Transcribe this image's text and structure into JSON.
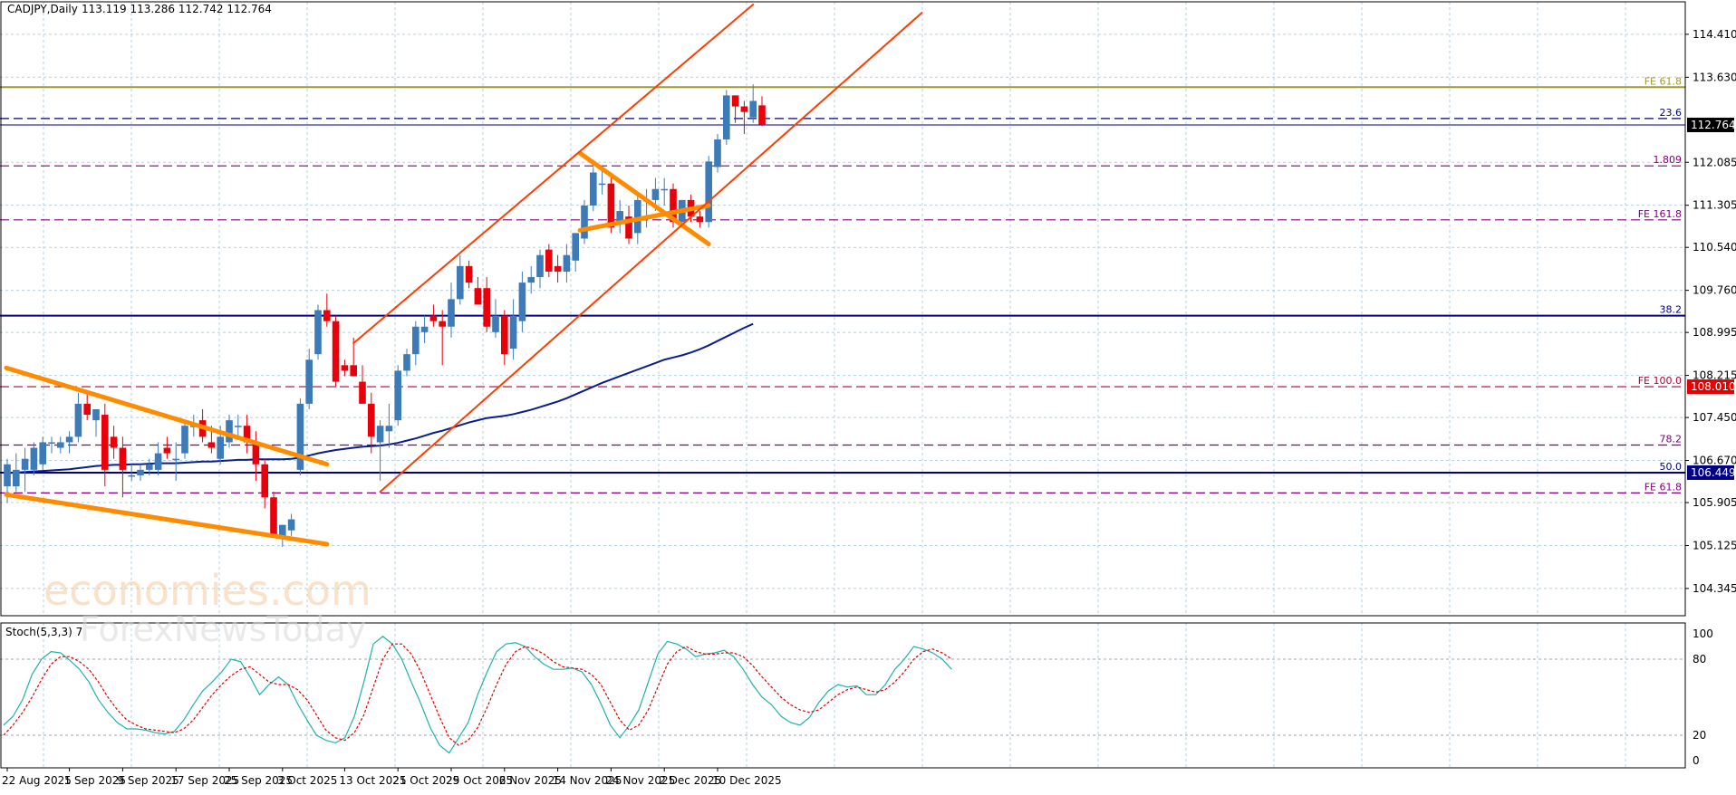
{
  "header": {
    "symbol": "CADJPY,Daily",
    "ohlc": "113.119 113.286 112.742 112.764"
  },
  "indicator": {
    "label": "Stoch(5,3,3) 7",
    "levels": [
      "100",
      "80",
      "20",
      "0"
    ]
  },
  "watermark": {
    "line1": "economies.com",
    "line2": "ForexNewsToday"
  },
  "chart_data": {
    "type": "candlestick",
    "price_ticks": [
      "114.410",
      "113.630",
      "112.085",
      "111.305",
      "110.540",
      "109.760",
      "108.995",
      "108.215",
      "107.450",
      "106.670",
      "105.905",
      "105.125",
      "104.345"
    ],
    "price_tick_values": [
      114.41,
      113.63,
      112.085,
      111.305,
      110.54,
      109.76,
      108.995,
      108.215,
      107.45,
      106.67,
      105.905,
      105.125,
      104.345
    ],
    "ylim": [
      103.85,
      115.0
    ],
    "date_ticks": [
      "22 Aug 2025",
      "1 Sep 2025",
      "9 Sep 2025",
      "17 Sep 2025",
      "25 Sep 2025",
      "3 Oct 2025",
      "13 Oct 2025",
      "21 Oct 2025",
      "29 Oct 2025",
      "6 Nov 2025",
      "14 Nov 2025",
      "24 Nov 2025",
      "2 Dec 2025",
      "10 Dec 2025"
    ],
    "date_tick_index": [
      0,
      7,
      13,
      19,
      25,
      31,
      38,
      44,
      50,
      56,
      62,
      68,
      74,
      80
    ],
    "current_price": "112.764",
    "current_price_value": 112.764,
    "price_labels": [
      {
        "text": "108.010",
        "value": 108.01,
        "bg": "#e60000"
      },
      {
        "text": "106.449",
        "value": 106.449,
        "bg": "#000080"
      }
    ],
    "levels": [
      {
        "label": "FE 61.8",
        "value": 113.45,
        "color": "#a09a30",
        "style": "solid"
      },
      {
        "label": "23.6",
        "value": 112.88,
        "color": "#000080",
        "style": "dashed"
      },
      {
        "label": "1.809",
        "value": 112.02,
        "color": "#800080",
        "style": "dashed"
      },
      {
        "label": "FE 161.8",
        "value": 111.04,
        "color": "#800080",
        "style": "dashed"
      },
      {
        "label": "38.2",
        "value": 109.3,
        "color": "#000080",
        "style": "solid"
      },
      {
        "label": "FE 100.0",
        "value": 108.01,
        "color": "#b00030",
        "style": "dashed"
      },
      {
        "label": "78.2",
        "value": 106.95,
        "color": "#800080",
        "style": "dashed"
      },
      {
        "label": "50.0",
        "value": 106.449,
        "color": "#000080",
        "style": "solid"
      },
      {
        "label": "FE 61.8",
        "value": 106.08,
        "color": "#800080",
        "style": "dashed"
      }
    ],
    "candles": [
      {
        "o": 106.2,
        "h": 106.7,
        "l": 105.9,
        "c": 106.6
      },
      {
        "o": 106.2,
        "h": 106.8,
        "l": 106.1,
        "c": 106.5
      },
      {
        "o": 106.5,
        "h": 106.9,
        "l": 106.1,
        "c": 106.7
      },
      {
        "o": 106.5,
        "h": 107.0,
        "l": 106.4,
        "c": 106.9
      },
      {
        "o": 106.6,
        "h": 107.1,
        "l": 106.5,
        "c": 107.0
      },
      {
        "o": 107.0,
        "h": 107.1,
        "l": 106.8,
        "c": 107.0
      },
      {
        "o": 106.9,
        "h": 107.1,
        "l": 106.8,
        "c": 107.0
      },
      {
        "o": 107.0,
        "h": 107.2,
        "l": 106.8,
        "c": 107.1
      },
      {
        "o": 107.1,
        "h": 107.9,
        "l": 107.0,
        "c": 107.7
      },
      {
        "o": 107.7,
        "h": 107.9,
        "l": 107.4,
        "c": 107.5
      },
      {
        "o": 107.4,
        "h": 107.6,
        "l": 107.1,
        "c": 107.6
      },
      {
        "o": 107.5,
        "h": 107.7,
        "l": 106.2,
        "c": 106.5
      },
      {
        "o": 107.1,
        "h": 107.3,
        "l": 106.7,
        "c": 106.9
      },
      {
        "o": 106.9,
        "h": 107.1,
        "l": 106.0,
        "c": 106.5
      },
      {
        "o": 106.4,
        "h": 106.6,
        "l": 106.3,
        "c": 106.4
      },
      {
        "o": 106.4,
        "h": 106.6,
        "l": 106.3,
        "c": 106.5
      },
      {
        "o": 106.5,
        "h": 106.7,
        "l": 106.4,
        "c": 106.6
      },
      {
        "o": 106.5,
        "h": 107.0,
        "l": 106.4,
        "c": 106.8
      },
      {
        "o": 106.9,
        "h": 107.1,
        "l": 106.7,
        "c": 106.8
      },
      {
        "o": 106.7,
        "h": 107.0,
        "l": 106.3,
        "c": 106.7
      },
      {
        "o": 106.8,
        "h": 107.4,
        "l": 106.7,
        "c": 107.3
      },
      {
        "o": 107.3,
        "h": 107.5,
        "l": 107.1,
        "c": 107.3
      },
      {
        "o": 107.4,
        "h": 107.6,
        "l": 107.0,
        "c": 107.1
      },
      {
        "o": 107.0,
        "h": 107.3,
        "l": 106.8,
        "c": 106.9
      },
      {
        "o": 106.7,
        "h": 107.3,
        "l": 106.6,
        "c": 107.1
      },
      {
        "o": 107.0,
        "h": 107.5,
        "l": 106.9,
        "c": 107.4
      },
      {
        "o": 107.3,
        "h": 107.5,
        "l": 107.1,
        "c": 107.3
      },
      {
        "o": 107.3,
        "h": 107.5,
        "l": 106.8,
        "c": 107.0
      },
      {
        "o": 107.0,
        "h": 107.2,
        "l": 106.3,
        "c": 106.6
      },
      {
        "o": 106.6,
        "h": 106.7,
        "l": 105.8,
        "c": 106.0
      },
      {
        "o": 106.0,
        "h": 106.1,
        "l": 105.3,
        "c": 105.3
      },
      {
        "o": 105.3,
        "h": 105.5,
        "l": 105.1,
        "c": 105.5
      },
      {
        "o": 105.4,
        "h": 105.7,
        "l": 105.3,
        "c": 105.6
      },
      {
        "o": 106.5,
        "h": 107.8,
        "l": 106.4,
        "c": 107.7
      },
      {
        "o": 107.7,
        "h": 108.7,
        "l": 107.6,
        "c": 108.5
      },
      {
        "o": 108.6,
        "h": 109.5,
        "l": 108.5,
        "c": 109.4
      },
      {
        "o": 109.4,
        "h": 109.7,
        "l": 109.1,
        "c": 109.2
      },
      {
        "o": 109.2,
        "h": 109.3,
        "l": 108.0,
        "c": 108.1
      },
      {
        "o": 108.4,
        "h": 108.5,
        "l": 108.2,
        "c": 108.3
      },
      {
        "o": 108.4,
        "h": 108.9,
        "l": 108.2,
        "c": 108.2
      },
      {
        "o": 108.1,
        "h": 108.4,
        "l": 107.8,
        "c": 107.7
      },
      {
        "o": 107.7,
        "h": 107.9,
        "l": 106.8,
        "c": 107.1
      },
      {
        "o": 107.0,
        "h": 107.4,
        "l": 106.3,
        "c": 107.3
      },
      {
        "o": 107.2,
        "h": 107.7,
        "l": 106.9,
        "c": 107.3
      },
      {
        "o": 107.4,
        "h": 108.4,
        "l": 107.3,
        "c": 108.3
      },
      {
        "o": 108.3,
        "h": 108.7,
        "l": 108.2,
        "c": 108.6
      },
      {
        "o": 108.6,
        "h": 109.2,
        "l": 108.4,
        "c": 109.1
      },
      {
        "o": 109.0,
        "h": 109.3,
        "l": 108.8,
        "c": 109.1
      },
      {
        "o": 109.3,
        "h": 109.5,
        "l": 109.1,
        "c": 109.2
      },
      {
        "o": 109.2,
        "h": 109.4,
        "l": 108.4,
        "c": 109.1
      },
      {
        "o": 109.1,
        "h": 109.9,
        "l": 108.9,
        "c": 109.6
      },
      {
        "o": 109.6,
        "h": 110.4,
        "l": 109.5,
        "c": 110.2
      },
      {
        "o": 110.2,
        "h": 110.3,
        "l": 109.8,
        "c": 109.9
      },
      {
        "o": 109.8,
        "h": 110.0,
        "l": 109.5,
        "c": 109.5
      },
      {
        "o": 109.8,
        "h": 110.0,
        "l": 109.0,
        "c": 109.1
      },
      {
        "o": 109.0,
        "h": 109.6,
        "l": 108.9,
        "c": 109.3
      },
      {
        "o": 109.3,
        "h": 109.4,
        "l": 108.4,
        "c": 108.6
      },
      {
        "o": 108.7,
        "h": 109.6,
        "l": 108.5,
        "c": 109.3
      },
      {
        "o": 109.2,
        "h": 110.1,
        "l": 109.0,
        "c": 109.9
      },
      {
        "o": 109.9,
        "h": 110.2,
        "l": 109.7,
        "c": 110.0
      },
      {
        "o": 110.0,
        "h": 110.5,
        "l": 109.8,
        "c": 110.4
      },
      {
        "o": 110.5,
        "h": 110.6,
        "l": 110.0,
        "c": 110.1
      },
      {
        "o": 110.2,
        "h": 110.4,
        "l": 109.9,
        "c": 110.1
      },
      {
        "o": 110.1,
        "h": 110.6,
        "l": 109.9,
        "c": 110.4
      },
      {
        "o": 110.3,
        "h": 110.8,
        "l": 110.1,
        "c": 110.8
      },
      {
        "o": 110.7,
        "h": 111.4,
        "l": 110.6,
        "c": 111.3
      },
      {
        "o": 111.3,
        "h": 112.0,
        "l": 111.2,
        "c": 111.9
      },
      {
        "o": 111.7,
        "h": 112.0,
        "l": 111.5,
        "c": 111.7
      },
      {
        "o": 111.7,
        "h": 111.8,
        "l": 110.8,
        "c": 110.9
      },
      {
        "o": 111.0,
        "h": 111.4,
        "l": 110.8,
        "c": 111.2
      },
      {
        "o": 111.1,
        "h": 111.3,
        "l": 110.6,
        "c": 110.7
      },
      {
        "o": 110.8,
        "h": 111.5,
        "l": 110.6,
        "c": 111.4
      },
      {
        "o": 111.4,
        "h": 111.6,
        "l": 110.9,
        "c": 111.4
      },
      {
        "o": 111.4,
        "h": 111.8,
        "l": 111.2,
        "c": 111.6
      },
      {
        "o": 111.6,
        "h": 111.8,
        "l": 111.3,
        "c": 111.6
      },
      {
        "o": 111.6,
        "h": 111.7,
        "l": 110.9,
        "c": 111.0
      },
      {
        "o": 111.0,
        "h": 111.4,
        "l": 110.9,
        "c": 111.4
      },
      {
        "o": 111.4,
        "h": 111.5,
        "l": 111.0,
        "c": 111.1
      },
      {
        "o": 111.1,
        "h": 111.2,
        "l": 110.9,
        "c": 111.0
      },
      {
        "o": 111.0,
        "h": 112.2,
        "l": 110.9,
        "c": 112.1
      },
      {
        "o": 112.0,
        "h": 112.6,
        "l": 111.9,
        "c": 112.5
      },
      {
        "o": 112.5,
        "h": 113.4,
        "l": 112.4,
        "c": 113.3
      },
      {
        "o": 113.3,
        "h": 113.3,
        "l": 112.8,
        "c": 113.1
      },
      {
        "o": 113.1,
        "h": 113.2,
        "l": 112.6,
        "c": 113.0
      },
      {
        "o": 112.9,
        "h": 113.5,
        "l": 112.8,
        "c": 113.2
      },
      {
        "o": 113.119,
        "h": 113.286,
        "l": 112.742,
        "c": 112.764
      }
    ],
    "ma": [
      106.44,
      106.45,
      106.46,
      106.47,
      106.48,
      106.49,
      106.5,
      106.51,
      106.53,
      106.55,
      106.57,
      106.58,
      106.59,
      106.59,
      106.6,
      106.6,
      106.61,
      106.62,
      106.62,
      106.62,
      106.63,
      106.64,
      106.65,
      106.65,
      106.66,
      106.67,
      106.68,
      106.68,
      106.69,
      106.69,
      106.69,
      106.69,
      106.7,
      106.72,
      106.76,
      106.8,
      106.83,
      106.86,
      106.88,
      106.9,
      106.92,
      106.93,
      106.94,
      106.96,
      106.99,
      107.03,
      107.07,
      107.12,
      107.17,
      107.21,
      107.26,
      107.31,
      107.36,
      107.4,
      107.44,
      107.46,
      107.48,
      107.51,
      107.55,
      107.59,
      107.64,
      107.69,
      107.74,
      107.8,
      107.87,
      107.94,
      108.01,
      108.08,
      108.14,
      108.2,
      108.26,
      108.32,
      108.38,
      108.44,
      108.5,
      108.54,
      108.58,
      108.63,
      108.69,
      108.76,
      108.84,
      108.92,
      109.0,
      109.08,
      109.15
    ],
    "channel_lines": [
      {
        "name": "falling-wedge-upper",
        "x": [
          -0.1,
          36
        ],
        "y": [
          108.35,
          106.6
        ],
        "color": "#ff8c00",
        "width": 5
      },
      {
        "name": "falling-wedge-lower",
        "x": [
          -0.1,
          36
        ],
        "y": [
          106.05,
          105.15
        ],
        "color": "#ff8c00",
        "width": 5
      },
      {
        "name": "pennant-upper",
        "x": [
          64.5,
          79
        ],
        "y": [
          110.85,
          111.3
        ],
        "color": "#ff8c00",
        "width": 5
      },
      {
        "name": "pennant-lower",
        "x": [
          64.5,
          79
        ],
        "y": [
          112.25,
          110.6
        ],
        "color": "#ff8c00",
        "width": 5
      },
      {
        "name": "channel-upper",
        "x": [
          39,
          84
        ],
        "y": [
          108.8,
          114.95
        ],
        "color": "#ff3d00",
        "width": 2
      },
      {
        "name": "channel-lower",
        "x": [
          42,
          103
        ],
        "y": [
          106.1,
          114.8
        ],
        "color": "#ff3d00",
        "width": 2
      }
    ],
    "stochastic": {
      "k": [
        28,
        35,
        48,
        68,
        80,
        86,
        85,
        79,
        72,
        62,
        48,
        38,
        30,
        25,
        25,
        24,
        22,
        21,
        23,
        32,
        44,
        55,
        62,
        70,
        80,
        78,
        66,
        52,
        60,
        66,
        60,
        45,
        32,
        20,
        16,
        14,
        18,
        35,
        62,
        92,
        98,
        92,
        80,
        62,
        45,
        26,
        12,
        6,
        18,
        30,
        52,
        70,
        86,
        92,
        93,
        90,
        82,
        76,
        72,
        72,
        73,
        70,
        60,
        45,
        28,
        18,
        28,
        40,
        62,
        84,
        94,
        92,
        88,
        82,
        84,
        85,
        87,
        82,
        72,
        60,
        50,
        44,
        35,
        30,
        28,
        34,
        46,
        55,
        60,
        58,
        59,
        52,
        52,
        60,
        72,
        80,
        90,
        88,
        85,
        80,
        72
      ],
      "d": [
        20,
        28,
        38,
        50,
        64,
        76,
        82,
        82,
        78,
        72,
        62,
        50,
        40,
        32,
        28,
        25,
        24,
        23,
        22,
        25,
        32,
        42,
        52,
        60,
        67,
        72,
        74,
        68,
        62,
        60,
        60,
        56,
        48,
        36,
        24,
        18,
        16,
        22,
        36,
        58,
        80,
        92,
        92,
        84,
        70,
        52,
        34,
        18,
        12,
        16,
        26,
        42,
        60,
        76,
        86,
        90,
        88,
        84,
        78,
        74,
        73,
        72,
        68,
        60,
        46,
        32,
        24,
        28,
        40,
        58,
        76,
        86,
        90,
        86,
        84,
        84,
        85,
        85,
        82,
        75,
        66,
        58,
        50,
        44,
        40,
        38,
        40,
        46,
        52,
        56,
        58,
        56,
        54,
        56,
        62,
        70,
        80,
        86,
        88,
        85,
        80
      ]
    }
  }
}
